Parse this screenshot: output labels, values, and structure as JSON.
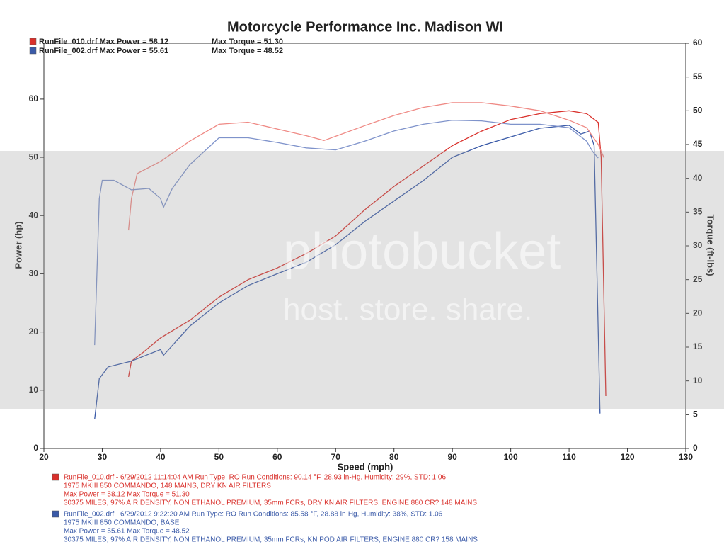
{
  "chart_data": {
    "type": "line",
    "title": "Motorcycle Performance Inc. Madison WI",
    "xlabel": "Speed (mph)",
    "ylabel": "Power (hp)",
    "y2label": "Torque (ft-lbs)",
    "xlim": [
      20,
      130
    ],
    "xticks": [
      20,
      30,
      40,
      50,
      60,
      70,
      80,
      90,
      100,
      110,
      120,
      130
    ],
    "ylim": [
      0,
      69.6
    ],
    "yticks": [
      0,
      10,
      20,
      30,
      40,
      50,
      60
    ],
    "y2lim": [
      0,
      60
    ],
    "y2ticks": [
      0,
      5,
      10,
      15,
      20,
      25,
      30,
      35,
      40,
      45,
      50,
      55,
      60
    ],
    "legend": [
      {
        "label": "RunFile_010.drf Max Power = 58.12",
        "torque_label": "Max Torque = 51.30",
        "color": "#d9302b"
      },
      {
        "label": "RunFile_002.drf Max Power = 55.61",
        "torque_label": "Max Torque = 48.52",
        "color": "#3a5aa8"
      }
    ],
    "series": [
      {
        "color": "#d9302b",
        "axis": "y",
        "x": [
          34.5,
          35,
          37,
          40,
          45,
          50,
          55,
          60,
          65,
          70,
          75,
          80,
          85,
          90,
          95,
          100,
          105,
          110,
          113,
          115,
          115.5,
          116.3
        ],
        "values": [
          12.3,
          15,
          16.5,
          19,
          22,
          26,
          29,
          31,
          33.5,
          36.5,
          41,
          45,
          48.5,
          52,
          54.5,
          56.5,
          57.5,
          58,
          57.5,
          56,
          50,
          9
        ]
      },
      {
        "color": "#3a5aa8",
        "axis": "y",
        "x": [
          28.7,
          29.5,
          31,
          35,
          40,
          40.5,
          45,
          50,
          55,
          60,
          65,
          70,
          75,
          80,
          85,
          90,
          95,
          100,
          105,
          110,
          112,
          113.5,
          114.3,
          115.3
        ],
        "values": [
          5,
          12,
          14,
          15,
          17,
          16,
          21,
          25,
          28,
          30,
          32,
          35,
          39,
          42.5,
          46,
          50,
          52,
          53.5,
          55,
          55.5,
          54,
          54.5,
          52,
          6
        ]
      },
      {
        "color": "#ef8a85",
        "axis": "y2",
        "x": [
          34.5,
          35,
          36,
          40,
          45,
          50,
          55,
          60,
          65,
          68,
          75,
          80,
          85,
          90,
          95,
          100,
          105,
          110,
          113,
          115,
          116
        ],
        "values": [
          32.3,
          37,
          40.7,
          42.5,
          45.5,
          48,
          48.3,
          47.3,
          46.3,
          45.6,
          47.8,
          49.3,
          50.5,
          51.2,
          51.2,
          50.7,
          50,
          48.6,
          47.5,
          45,
          43
        ]
      },
      {
        "color": "#7f93cb",
        "axis": "y2",
        "x": [
          28.7,
          29.5,
          30,
          32,
          35,
          38,
          40,
          40.5,
          42,
          45,
          50,
          55,
          60,
          65,
          70,
          75,
          80,
          85,
          90,
          95,
          100,
          105,
          110,
          113,
          114,
          115
        ],
        "values": [
          15.3,
          37,
          39.7,
          39.7,
          38.3,
          38.5,
          37,
          35.7,
          38.5,
          42,
          46,
          46,
          45.3,
          44.5,
          44.2,
          45.5,
          47,
          48,
          48.6,
          48.5,
          48,
          48,
          47.5,
          45.5,
          44,
          43
        ]
      }
    ],
    "notes": [
      {
        "color": "#d9302b",
        "lines": [
          "RunFile_010.drf - 6/29/2012 11:14:04 AM  Run Type: RO  Run Conditions: 90.14 °F, 28.93 in-Hg,  Humidity:  29%, STD: 1.06",
          "1975 MKIII 850 COMMANDO, 148 MAINS, DRY KN AIR FILTERS",
          "Max Power = 58.12  Max Torque = 51.30",
          "30375 MILES, 97% AIR DENSITY, NON ETHANOL PREMIUM, 35mm FCRs, DRY KN AIR FILTERS, ENGINE 880 CR? 148 MAINS"
        ]
      },
      {
        "color": "#3a5aa8",
        "lines": [
          "RunFile_002.drf - 6/29/2012 9:22:20 AM  Run Type: RO  Run Conditions: 85.58 °F, 28.88 in-Hg,  Humidity:  38%, STD: 1.06",
          "1975 MKIII 850 COMMANDO, BASE",
          "Max Power = 55.61  Max Torque = 48.52",
          "30375 MILES, 97% AIR DENSITY, NON ETHANOL PREMIUM, 35mm FCRs, KN POD AIR FILTERS, ENGINE 880 CR? 158 MAINS"
        ]
      }
    ],
    "watermark": [
      "photobucket",
      "host. store. share."
    ]
  }
}
